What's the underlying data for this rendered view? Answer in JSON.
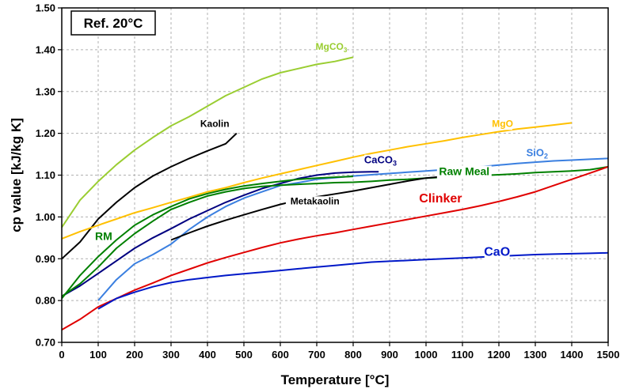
{
  "chart_data": {
    "type": "line",
    "annotation": "Ref. 20°C",
    "xlabel": "Temperature [°C]",
    "ylabel": "cp value [kJ/kg K]",
    "xlim": [
      0,
      1500
    ],
    "ylim": [
      0.7,
      1.5
    ],
    "x_ticks": [
      0,
      100,
      200,
      300,
      400,
      500,
      600,
      700,
      800,
      900,
      1000,
      1100,
      1200,
      1300,
      1400,
      1500
    ],
    "y_ticks": [
      0.7,
      0.8,
      0.9,
      1.0,
      1.1,
      1.2,
      1.3,
      1.4,
      1.5
    ],
    "y_tick_labels": [
      "0.70",
      "0.80",
      "0.90",
      "1.00",
      "1.10",
      "1.20",
      "1.30",
      "1.40",
      "1.50"
    ],
    "grid": true,
    "series": [
      {
        "name": "MgCO3",
        "label_main": "MgCO",
        "label_sub": "3",
        "color": "#9acd32",
        "label_pos": [
          740,
          1.4
        ],
        "label_size": 12,
        "points": [
          [
            0,
            0.975
          ],
          [
            50,
            1.04
          ],
          [
            100,
            1.085
          ],
          [
            150,
            1.125
          ],
          [
            200,
            1.16
          ],
          [
            250,
            1.19
          ],
          [
            300,
            1.218
          ],
          [
            350,
            1.24
          ],
          [
            400,
            1.265
          ],
          [
            450,
            1.29
          ],
          [
            500,
            1.31
          ],
          [
            550,
            1.33
          ],
          [
            600,
            1.345
          ],
          [
            650,
            1.355
          ],
          [
            700,
            1.365
          ],
          [
            750,
            1.372
          ],
          [
            800,
            1.382
          ]
        ]
      },
      {
        "name": "Kaolin",
        "label_main": "Kaolin",
        "label_sub": "",
        "color": "#000000",
        "label_pos": [
          420,
          1.215
        ],
        "label_size": 12,
        "points": [
          [
            0,
            0.9
          ],
          [
            50,
            0.94
          ],
          [
            100,
            0.995
          ],
          [
            150,
            1.035
          ],
          [
            200,
            1.07
          ],
          [
            250,
            1.098
          ],
          [
            300,
            1.12
          ],
          [
            350,
            1.14
          ],
          [
            400,
            1.158
          ],
          [
            450,
            1.175
          ],
          [
            480,
            1.2
          ]
        ]
      },
      {
        "name": "MgO",
        "label_main": "MgO",
        "label_sub": "",
        "color": "#ffc000",
        "label_pos": [
          1210,
          1.215
        ],
        "label_size": 12,
        "points": [
          [
            0,
            0.948
          ],
          [
            50,
            0.965
          ],
          [
            100,
            0.98
          ],
          [
            150,
            0.995
          ],
          [
            200,
            1.01
          ],
          [
            250,
            1.022
          ],
          [
            300,
            1.035
          ],
          [
            350,
            1.047
          ],
          [
            400,
            1.06
          ],
          [
            450,
            1.07
          ],
          [
            500,
            1.082
          ],
          [
            550,
            1.093
          ],
          [
            600,
            1.103
          ],
          [
            650,
            1.113
          ],
          [
            700,
            1.123
          ],
          [
            750,
            1.133
          ],
          [
            800,
            1.143
          ],
          [
            850,
            1.152
          ],
          [
            900,
            1.16
          ],
          [
            950,
            1.168
          ],
          [
            1000,
            1.175
          ],
          [
            1050,
            1.182
          ],
          [
            1100,
            1.19
          ],
          [
            1150,
            1.197
          ],
          [
            1200,
            1.204
          ],
          [
            1250,
            1.21
          ],
          [
            1300,
            1.215
          ],
          [
            1350,
            1.22
          ],
          [
            1400,
            1.225
          ]
        ]
      },
      {
        "name": "SiO2",
        "label_main": "SiO",
        "label_sub": "2",
        "color": "#3a7fe0",
        "label_pos": [
          1305,
          1.145
        ],
        "label_size": 13,
        "points": [
          [
            100,
            0.8
          ],
          [
            150,
            0.85
          ],
          [
            200,
            0.888
          ],
          [
            250,
            0.91
          ],
          [
            300,
            0.935
          ],
          [
            350,
            0.97
          ],
          [
            400,
            1.0
          ],
          [
            450,
            1.025
          ],
          [
            500,
            1.045
          ],
          [
            550,
            1.06
          ],
          [
            600,
            1.075
          ],
          [
            650,
            1.082
          ],
          [
            700,
            1.09
          ],
          [
            750,
            1.094
          ],
          [
            800,
            1.098
          ],
          [
            850,
            1.101
          ],
          [
            900,
            1.104
          ],
          [
            950,
            1.107
          ],
          [
            1000,
            1.11
          ],
          [
            1050,
            1.113
          ],
          [
            1100,
            1.116
          ],
          [
            1150,
            1.12
          ],
          [
            1200,
            1.124
          ],
          [
            1250,
            1.128
          ],
          [
            1300,
            1.131
          ],
          [
            1350,
            1.134
          ],
          [
            1400,
            1.136
          ],
          [
            1450,
            1.138
          ],
          [
            1500,
            1.14
          ]
        ]
      },
      {
        "name": "CaCO3",
        "label_main": "CaCO",
        "label_sub": "3",
        "color": "#000080",
        "label_pos": [
          875,
          1.128
        ],
        "label_size": 13,
        "points": [
          [
            0,
            0.81
          ],
          [
            50,
            0.835
          ],
          [
            100,
            0.865
          ],
          [
            150,
            0.895
          ],
          [
            200,
            0.925
          ],
          [
            250,
            0.95
          ],
          [
            300,
            0.972
          ],
          [
            350,
            0.995
          ],
          [
            400,
            1.015
          ],
          [
            450,
            1.035
          ],
          [
            500,
            1.052
          ],
          [
            550,
            1.068
          ],
          [
            600,
            1.08
          ],
          [
            650,
            1.092
          ],
          [
            700,
            1.1
          ],
          [
            750,
            1.105
          ],
          [
            800,
            1.107
          ],
          [
            850,
            1.108
          ],
          [
            870,
            1.108
          ]
        ]
      },
      {
        "name": "Raw Meal",
        "label_main": "Raw Meal",
        "label_sub": "",
        "color": "#008000",
        "label_pos": [
          1105,
          1.1
        ],
        "label_size": 14,
        "points": [
          [
            0,
            0.81
          ],
          [
            50,
            0.84
          ],
          [
            100,
            0.88
          ],
          [
            150,
            0.925
          ],
          [
            200,
            0.96
          ],
          [
            250,
            0.99
          ],
          [
            300,
            1.018
          ],
          [
            350,
            1.035
          ],
          [
            400,
            1.05
          ],
          [
            450,
            1.06
          ],
          [
            500,
            1.068
          ],
          [
            550,
            1.073
          ],
          [
            600,
            1.076
          ],
          [
            650,
            1.078
          ],
          [
            700,
            1.08
          ],
          [
            750,
            1.082
          ],
          [
            800,
            1.083
          ],
          [
            850,
            1.085
          ],
          [
            900,
            1.088
          ],
          [
            950,
            1.09
          ],
          [
            1000,
            1.093
          ],
          [
            1050,
            1.095
          ],
          [
            1100,
            1.097
          ],
          [
            1150,
            1.099
          ],
          [
            1200,
            1.101
          ],
          [
            1250,
            1.103
          ],
          [
            1300,
            1.106
          ],
          [
            1350,
            1.108
          ],
          [
            1400,
            1.11
          ],
          [
            1450,
            1.113
          ],
          [
            1500,
            1.12
          ]
        ]
      },
      {
        "name": "Metakaolin",
        "label_main": "Metakaolin",
        "label_sub": "",
        "color": "#000000",
        "label_pos": [
          695,
          1.03
        ],
        "label_size": 12,
        "points": [
          [
            300,
            0.945
          ],
          [
            350,
            0.962
          ],
          [
            400,
            0.978
          ],
          [
            450,
            0.992
          ],
          [
            500,
            1.005
          ],
          [
            550,
            1.018
          ],
          [
            600,
            1.03
          ],
          [
            650,
            1.04
          ],
          [
            700,
            1.048
          ],
          [
            750,
            1.055
          ],
          [
            800,
            1.062
          ],
          [
            850,
            1.07
          ],
          [
            900,
            1.078
          ],
          [
            950,
            1.086
          ],
          [
            1000,
            1.093
          ],
          [
            1050,
            1.097
          ],
          [
            1100,
            1.1
          ]
        ]
      },
      {
        "name": "RM",
        "label_main": "RM",
        "label_sub": "",
        "color": "#008000",
        "label_pos": [
          115,
          0.945
        ],
        "label_size": 14,
        "points": [
          [
            0,
            0.805
          ],
          [
            50,
            0.86
          ],
          [
            100,
            0.905
          ],
          [
            150,
            0.945
          ],
          [
            200,
            0.98
          ],
          [
            250,
            1.005
          ],
          [
            300,
            1.025
          ],
          [
            350,
            1.043
          ],
          [
            400,
            1.056
          ],
          [
            450,
            1.066
          ],
          [
            500,
            1.074
          ],
          [
            550,
            1.08
          ],
          [
            600,
            1.085
          ],
          [
            650,
            1.09
          ],
          [
            700,
            1.093
          ],
          [
            750,
            1.095
          ],
          [
            800,
            1.097
          ]
        ]
      },
      {
        "name": "Clinker",
        "label_main": "Clinker",
        "label_sub": "",
        "color": "#e00000",
        "label_pos": [
          1040,
          1.035
        ],
        "label_size": 16,
        "points": [
          [
            0,
            0.73
          ],
          [
            50,
            0.755
          ],
          [
            100,
            0.785
          ],
          [
            150,
            0.805
          ],
          [
            200,
            0.825
          ],
          [
            250,
            0.842
          ],
          [
            300,
            0.86
          ],
          [
            350,
            0.875
          ],
          [
            400,
            0.89
          ],
          [
            450,
            0.903
          ],
          [
            500,
            0.915
          ],
          [
            550,
            0.927
          ],
          [
            600,
            0.938
          ],
          [
            650,
            0.947
          ],
          [
            700,
            0.955
          ],
          [
            750,
            0.962
          ],
          [
            800,
            0.97
          ],
          [
            850,
            0.978
          ],
          [
            900,
            0.986
          ],
          [
            950,
            0.994
          ],
          [
            1000,
            1.002
          ],
          [
            1050,
            1.01
          ],
          [
            1100,
            1.018
          ],
          [
            1150,
            1.027
          ],
          [
            1200,
            1.037
          ],
          [
            1250,
            1.048
          ],
          [
            1300,
            1.06
          ],
          [
            1350,
            1.075
          ],
          [
            1400,
            1.09
          ],
          [
            1450,
            1.105
          ],
          [
            1500,
            1.12
          ]
        ]
      },
      {
        "name": "CaO",
        "label_main": "CaO",
        "label_sub": "",
        "color": "#0018c8",
        "label_pos": [
          1195,
          0.907
        ],
        "label_size": 16,
        "points": [
          [
            100,
            0.78
          ],
          [
            150,
            0.805
          ],
          [
            200,
            0.82
          ],
          [
            250,
            0.833
          ],
          [
            300,
            0.843
          ],
          [
            350,
            0.85
          ],
          [
            400,
            0.855
          ],
          [
            450,
            0.86
          ],
          [
            500,
            0.864
          ],
          [
            550,
            0.868
          ],
          [
            600,
            0.872
          ],
          [
            650,
            0.876
          ],
          [
            700,
            0.88
          ],
          [
            750,
            0.884
          ],
          [
            800,
            0.888
          ],
          [
            850,
            0.892
          ],
          [
            900,
            0.894
          ],
          [
            950,
            0.896
          ],
          [
            1000,
            0.898
          ],
          [
            1050,
            0.9
          ],
          [
            1100,
            0.902
          ],
          [
            1150,
            0.904
          ],
          [
            1200,
            0.906
          ],
          [
            1250,
            0.908
          ],
          [
            1300,
            0.91
          ],
          [
            1350,
            0.911
          ],
          [
            1400,
            0.912
          ],
          [
            1450,
            0.913
          ],
          [
            1500,
            0.914
          ]
        ]
      }
    ]
  }
}
